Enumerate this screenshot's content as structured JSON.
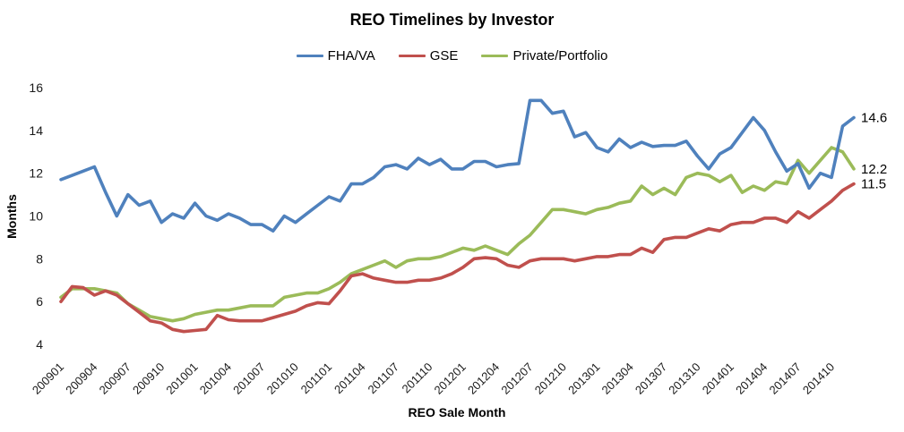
{
  "chart_data": {
    "type": "line",
    "title": "REO Timelines by Investor",
    "xlabel": "REO Sale Month",
    "ylabel": "Months",
    "ylim": [
      4,
      16
    ],
    "yticks": [
      4,
      6,
      8,
      10,
      12,
      14,
      16
    ],
    "grid": false,
    "legend_position": "top",
    "x_monthly_range": [
      "200901",
      "201412"
    ],
    "xtick_labels": [
      "200901",
      "200904",
      "200907",
      "200910",
      "201001",
      "201004",
      "201007",
      "201010",
      "201101",
      "201104",
      "201107",
      "201110",
      "201201",
      "201204",
      "201207",
      "201210",
      "201301",
      "201304",
      "201307",
      "201310",
      "201401",
      "201404",
      "201407",
      "201410"
    ],
    "xtick_every_n_months": 3,
    "series": [
      {
        "name": "FHA/VA",
        "color": "#4F81BD",
        "end_label": "14.6",
        "values": [
          11.7,
          11.9,
          12.1,
          12.3,
          11.1,
          10.0,
          11.0,
          10.5,
          10.7,
          9.7,
          10.1,
          9.9,
          10.6,
          10.0,
          9.8,
          10.1,
          9.9,
          9.6,
          9.6,
          9.3,
          10.0,
          9.7,
          10.1,
          10.5,
          10.9,
          10.7,
          11.5,
          11.5,
          11.8,
          12.3,
          12.4,
          12.2,
          12.7,
          12.4,
          12.65,
          12.2,
          12.2,
          12.55,
          12.55,
          12.3,
          12.4,
          12.45,
          15.4,
          15.4,
          14.8,
          14.9,
          13.7,
          13.9,
          13.2,
          13.0,
          13.6,
          13.2,
          13.45,
          13.25,
          13.3,
          13.3,
          13.5,
          12.8,
          12.2,
          12.9,
          13.2,
          13.9,
          14.6,
          14.0,
          13.0,
          12.1,
          12.45,
          11.3,
          12.0,
          11.8,
          14.2,
          14.6
        ]
      },
      {
        "name": "GSE",
        "color": "#C0504D",
        "end_label": "11.5",
        "values": [
          6.0,
          6.7,
          6.65,
          6.3,
          6.5,
          6.3,
          5.9,
          5.5,
          5.1,
          5.0,
          4.7,
          4.6,
          4.65,
          4.7,
          5.35,
          5.15,
          5.1,
          5.1,
          5.1,
          5.25,
          5.4,
          5.55,
          5.8,
          5.95,
          5.9,
          6.5,
          7.2,
          7.3,
          7.1,
          7.0,
          6.9,
          6.9,
          7.0,
          7.0,
          7.1,
          7.3,
          7.6,
          8.0,
          8.05,
          8.0,
          7.7,
          7.6,
          7.9,
          8.0,
          8.0,
          8.0,
          7.9,
          8.0,
          8.1,
          8.1,
          8.2,
          8.2,
          8.5,
          8.3,
          8.9,
          9.0,
          9.0,
          9.2,
          9.4,
          9.3,
          9.6,
          9.7,
          9.7,
          9.9,
          9.9,
          9.7,
          10.2,
          9.9,
          10.3,
          10.7,
          11.2,
          11.5
        ]
      },
      {
        "name": "Private/Portfolio",
        "color": "#9BBB59",
        "end_label": "12.2",
        "values": [
          6.2,
          6.6,
          6.6,
          6.6,
          6.5,
          6.4,
          5.9,
          5.6,
          5.3,
          5.2,
          5.1,
          5.2,
          5.4,
          5.5,
          5.6,
          5.6,
          5.7,
          5.8,
          5.8,
          5.8,
          6.2,
          6.3,
          6.4,
          6.4,
          6.6,
          6.9,
          7.3,
          7.5,
          7.7,
          7.9,
          7.6,
          7.9,
          8.0,
          8.0,
          8.1,
          8.3,
          8.5,
          8.4,
          8.6,
          8.4,
          8.2,
          8.7,
          9.1,
          9.7,
          10.3,
          10.3,
          10.2,
          10.1,
          10.3,
          10.4,
          10.6,
          10.7,
          11.4,
          11.0,
          11.3,
          11.0,
          11.8,
          12.0,
          11.9,
          11.6,
          11.9,
          11.1,
          11.4,
          11.2,
          11.6,
          11.5,
          12.6,
          12.0,
          12.6,
          13.2,
          13.0,
          12.2
        ]
      }
    ]
  }
}
